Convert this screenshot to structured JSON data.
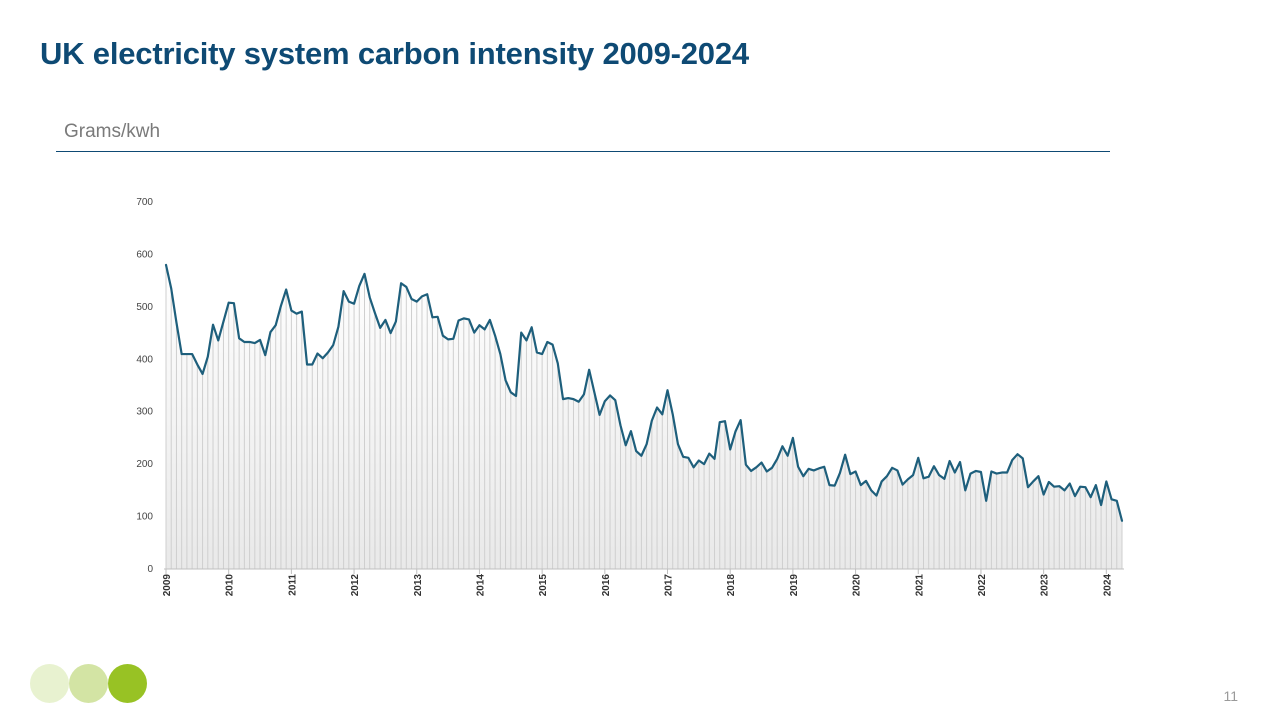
{
  "slide": {
    "title": "UK electricity system carbon intensity 2009-2024",
    "unit_label": "Grams/kwh",
    "page_number": "11",
    "decor_dots": [
      "#e8f2d0",
      "#d3e4a4",
      "#98c224"
    ]
  },
  "chart_data": {
    "type": "line",
    "title": "UK electricity system carbon intensity 2009-2024",
    "ylabel": "Grams/kwh",
    "xlabel": "",
    "ylim": [
      0,
      700
    ],
    "yticks": [
      0,
      100,
      200,
      300,
      400,
      500,
      600,
      700
    ],
    "xticks": [
      "2009",
      "2010",
      "2011",
      "2012",
      "2013",
      "2014",
      "2015",
      "2016",
      "2017",
      "2018",
      "2019",
      "2020",
      "2021",
      "2022",
      "2023",
      "2024"
    ],
    "x_start": "2009-01",
    "x_frequency": "monthly",
    "grid": false,
    "legend": "none",
    "line_color": "#1e5f7c",
    "area_fill": "vertical gradient, white to light grey",
    "series": [
      {
        "values": [
          580,
          535,
          470,
          410,
          410,
          410,
          390,
          372,
          405,
          466,
          436,
          472,
          508,
          507,
          440,
          433,
          433,
          431,
          437,
          408,
          452,
          465,
          502,
          533,
          493,
          487,
          491,
          390,
          390,
          411,
          402,
          413,
          427,
          462,
          530,
          510,
          506,
          540,
          563,
          518,
          488,
          460,
          475,
          450,
          472,
          545,
          538,
          515,
          510,
          520,
          524,
          480,
          481,
          445,
          438,
          439,
          474,
          478,
          476,
          451,
          465,
          457,
          475,
          445,
          410,
          360,
          337,
          330,
          451,
          436,
          461,
          413,
          410,
          433,
          428,
          392,
          324,
          326,
          324,
          319,
          333,
          380,
          337,
          294,
          320,
          331,
          322,
          274,
          236,
          263,
          225,
          216,
          238,
          283,
          308,
          295,
          341,
          295,
          238,
          214,
          212,
          194,
          207,
          200,
          220,
          210,
          280,
          282,
          228,
          262,
          284,
          199,
          187,
          194,
          203,
          186,
          193,
          210,
          234,
          216,
          250,
          195,
          177,
          191,
          188,
          192,
          195,
          160,
          159,
          183,
          218,
          181,
          186,
          160,
          168,
          150,
          140,
          167,
          177,
          193,
          188,
          161,
          171,
          179,
          212,
          173,
          176,
          196,
          179,
          172,
          206,
          184,
          204,
          150,
          182,
          187,
          185,
          130,
          186,
          182,
          184,
          184,
          208,
          219,
          211,
          156,
          167,
          177,
          142,
          166,
          157,
          158,
          150,
          163,
          139,
          157,
          156,
          137,
          160,
          122,
          167,
          133,
          130,
          92
        ]
      }
    ]
  }
}
